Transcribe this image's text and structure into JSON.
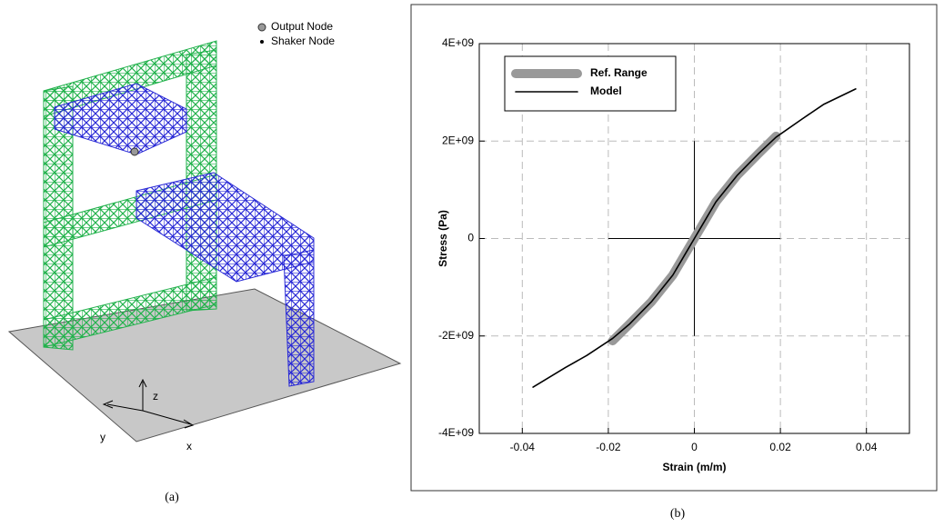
{
  "panel_a": {
    "legend": [
      "Output Node",
      "Shaker Node"
    ],
    "axes": [
      "z",
      "y",
      "x"
    ],
    "caption": "(a)"
  },
  "caption_b": "(b)",
  "chart_data": {
    "type": "line",
    "x_label": "Strain (m/m)",
    "y_label": "Stress (Pa)",
    "x": [
      -0.0375,
      -0.03,
      -0.025,
      -0.019,
      -0.015,
      -0.01,
      -0.005,
      -0.002,
      0,
      0.002,
      0.005,
      0.01,
      0.015,
      0.019,
      0.025,
      0.03,
      0.0375
    ],
    "series": [
      {
        "name": "Ref. Range",
        "color": "#999999",
        "values": [
          null,
          null,
          null,
          -2100000000,
          -1750000000,
          -1300000000,
          -750000000,
          -300000000,
          0,
          300000000,
          750000000,
          1300000000,
          1750000000,
          2100000000,
          null,
          null,
          null
        ]
      },
      {
        "name": "Model",
        "color": "#000000",
        "values": [
          -3050000000,
          -2650000000,
          -2400000000,
          -2050000000,
          -1750000000,
          -1300000000,
          -750000000,
          -300000000,
          0,
          300000000,
          750000000,
          1300000000,
          1750000000,
          2080000000,
          2450000000,
          2750000000,
          3070000000
        ]
      }
    ],
    "xlim": [
      -0.05,
      0.05
    ],
    "xticks": [
      -0.04,
      -0.02,
      0,
      0.02,
      0.04
    ],
    "ylim": [
      -4000000000,
      4000000000
    ],
    "yticks": [
      {
        "value": -4000000000,
        "label": "-4E+09"
      },
      {
        "value": -2000000000,
        "label": "-2E+09"
      },
      0,
      {
        "value": 2000000000,
        "label": "2E+09"
      },
      {
        "value": 4000000000,
        "label": "4E+09"
      }
    ],
    "grid": true,
    "legend": "upper-left"
  }
}
